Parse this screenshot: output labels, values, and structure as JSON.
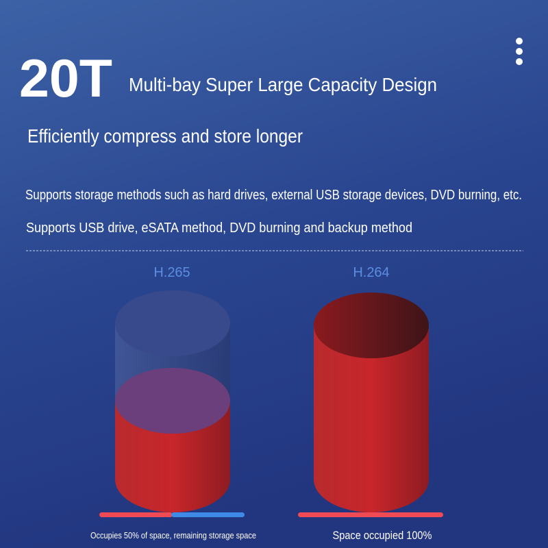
{
  "header": {
    "capacity": "20T",
    "title": "Multi-bay Super Large Capacity Design",
    "subtitle": "Efficiently compress and store longer"
  },
  "features": [
    "Supports storage methods such as hard drives, external USB storage devices, DVD burning, etc.",
    "Supports USB drive, eSATA method, DVD burning and backup method"
  ],
  "comparison": [
    {
      "codec": "H.265",
      "caption": "Occupies 50% of space, remaining storage space"
    },
    {
      "codec": "H.264",
      "caption": "Space occupied 100%"
    }
  ]
}
